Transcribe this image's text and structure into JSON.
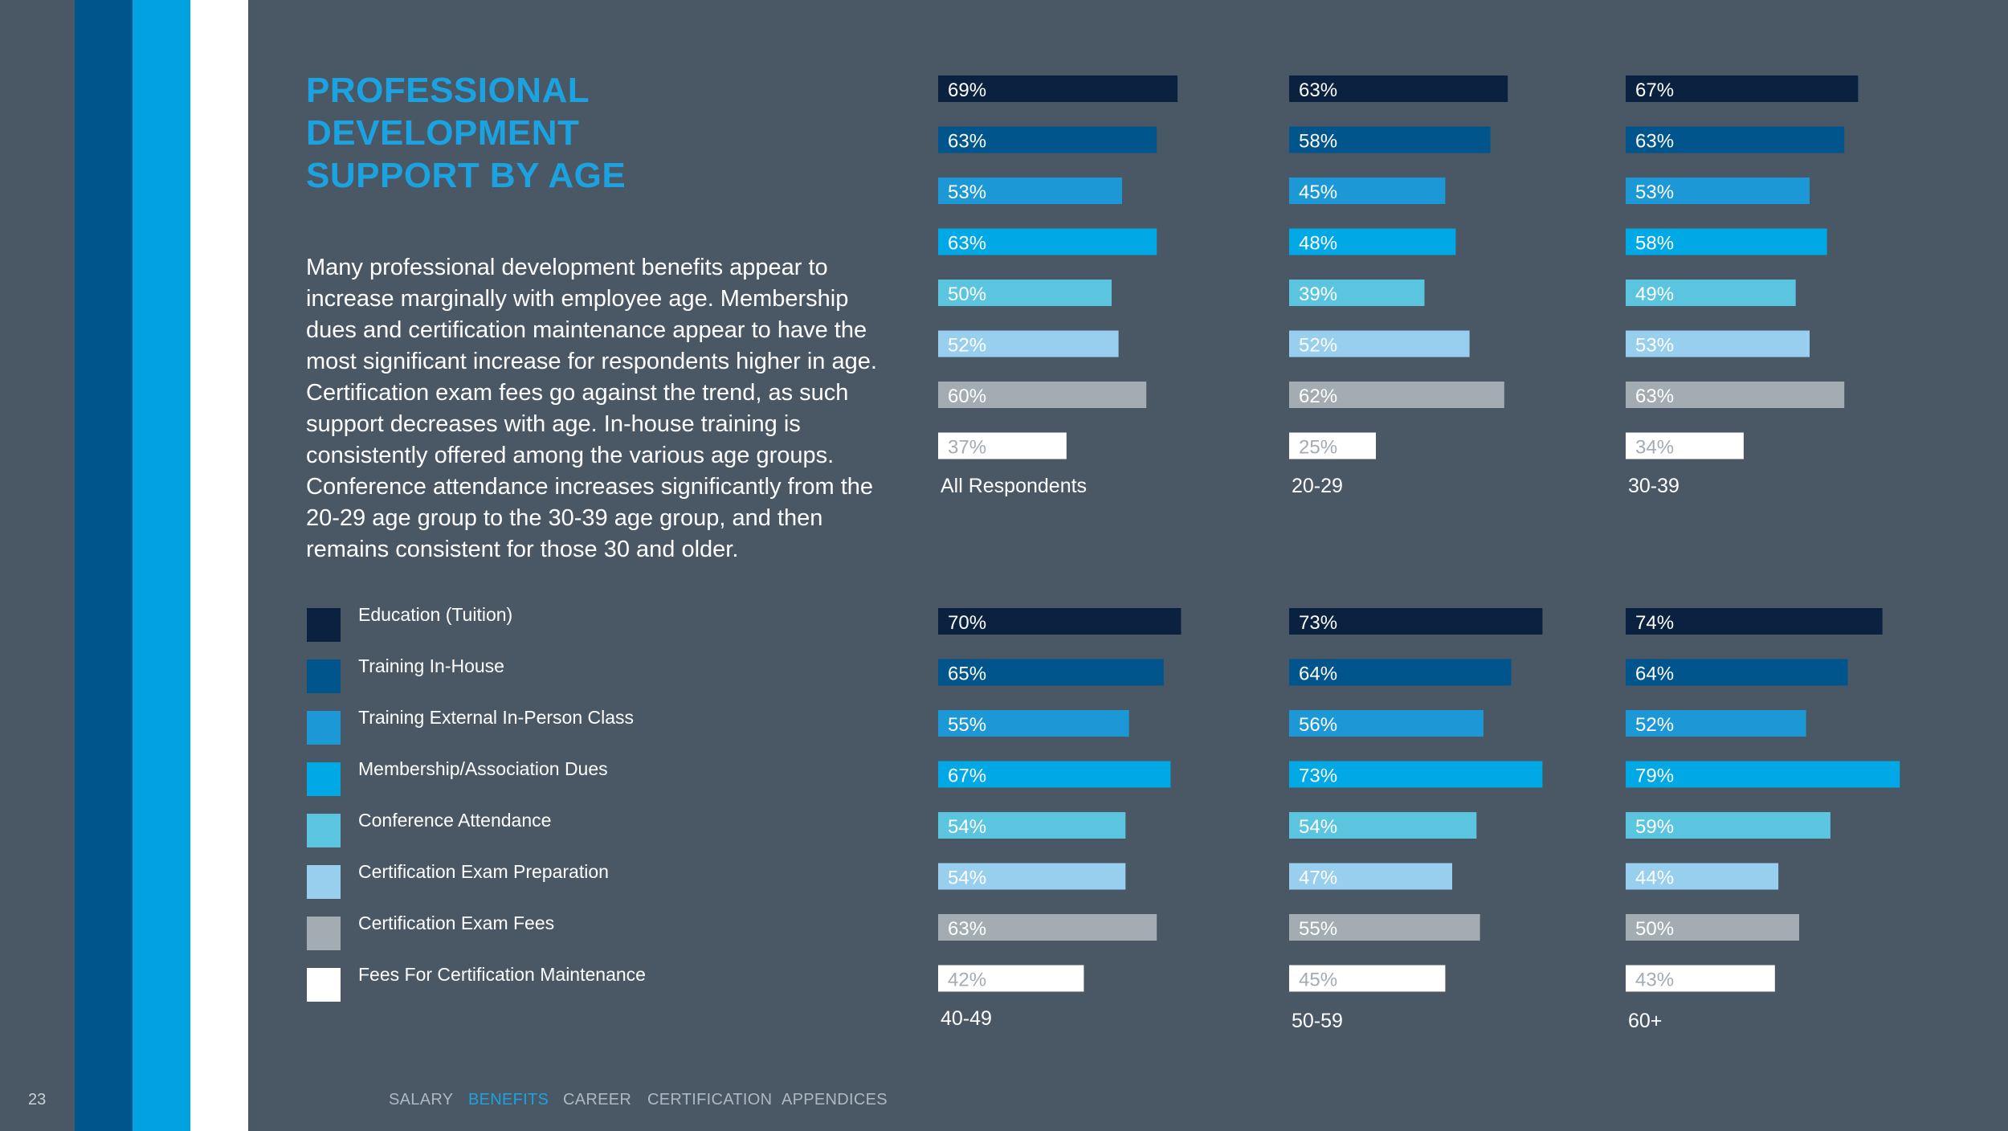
{
  "page": {
    "number": "23"
  },
  "header": {
    "title": "PROFESSIONAL DEVELOPMENT SUPPORT BY AGE"
  },
  "body_text": "Many professional development benefits appear to increase marginally with employee age. Membership dues and certification maintenance appear to have the most significant increase for respondents higher in age. Certification exam fees go against the trend, as such support decreases with age. In-house training is consistently offered among the various age groups. Conference attendance increases significantly from the 20-29 age group to the 30-39 age group, and then remains consistent for those 30 and older.",
  "legend": [
    {
      "label": "Education (Tuition)",
      "color": "#0a2240"
    },
    {
      "label": "Training In-House",
      "color": "#00558c"
    },
    {
      "label": "Training External In-Person Class",
      "color": "#1b98d5"
    },
    {
      "label": "Membership/Association Dues",
      "color": "#00a9e6"
    },
    {
      "label": "Conference Attendance",
      "color": "#5bc5df"
    },
    {
      "label": "Certification Exam Preparation",
      "color": "#98cfef"
    },
    {
      "label": "Certification Exam Fees",
      "color": "#a3acb3"
    },
    {
      "label": "Fees For Certification Maintenance",
      "color": "#ffffff"
    }
  ],
  "chart_data": {
    "type": "bar",
    "orientation": "horizontal",
    "value_format": "percent",
    "categories": [
      "Education (Tuition)",
      "Training In-House",
      "Training External In-Person Class",
      "Membership/Association Dues",
      "Conference Attendance",
      "Certification Exam Preparation",
      "Certification Exam Fees",
      "Fees For Certification Maintenance"
    ],
    "colors": [
      "#0a2240",
      "#00558c",
      "#1b98d5",
      "#00a9e6",
      "#5bc5df",
      "#98cfef",
      "#a3acb3",
      "#ffffff"
    ],
    "label_colors": [
      "#ffffff",
      "#ffffff",
      "#ffffff",
      "#ffffff",
      "#ffffff",
      "#ffffff",
      "#ffffff",
      "#a3acb3"
    ],
    "series": [
      {
        "name": "All Respondents",
        "values": [
          69,
          63,
          53,
          63,
          50,
          52,
          60,
          37
        ]
      },
      {
        "name": "20-29",
        "values": [
          63,
          58,
          45,
          48,
          39,
          52,
          62,
          25
        ]
      },
      {
        "name": "30-39",
        "values": [
          67,
          63,
          53,
          58,
          49,
          53,
          63,
          34
        ]
      },
      {
        "name": "40-49",
        "values": [
          70,
          65,
          55,
          67,
          54,
          54,
          63,
          42
        ]
      },
      {
        "name": "50-59",
        "values": [
          73,
          64,
          56,
          73,
          54,
          47,
          55,
          45
        ]
      },
      {
        "name": "60+",
        "values": [
          74,
          64,
          52,
          79,
          59,
          44,
          50,
          43
        ]
      }
    ]
  },
  "footer_nav": [
    {
      "label": "SALARY",
      "active": false
    },
    {
      "label": "BENEFITS",
      "active": true
    },
    {
      "label": "CAREER",
      "active": false
    },
    {
      "label": "CERTIFICATION",
      "active": false
    },
    {
      "label": "APPENDICES",
      "active": false
    }
  ]
}
